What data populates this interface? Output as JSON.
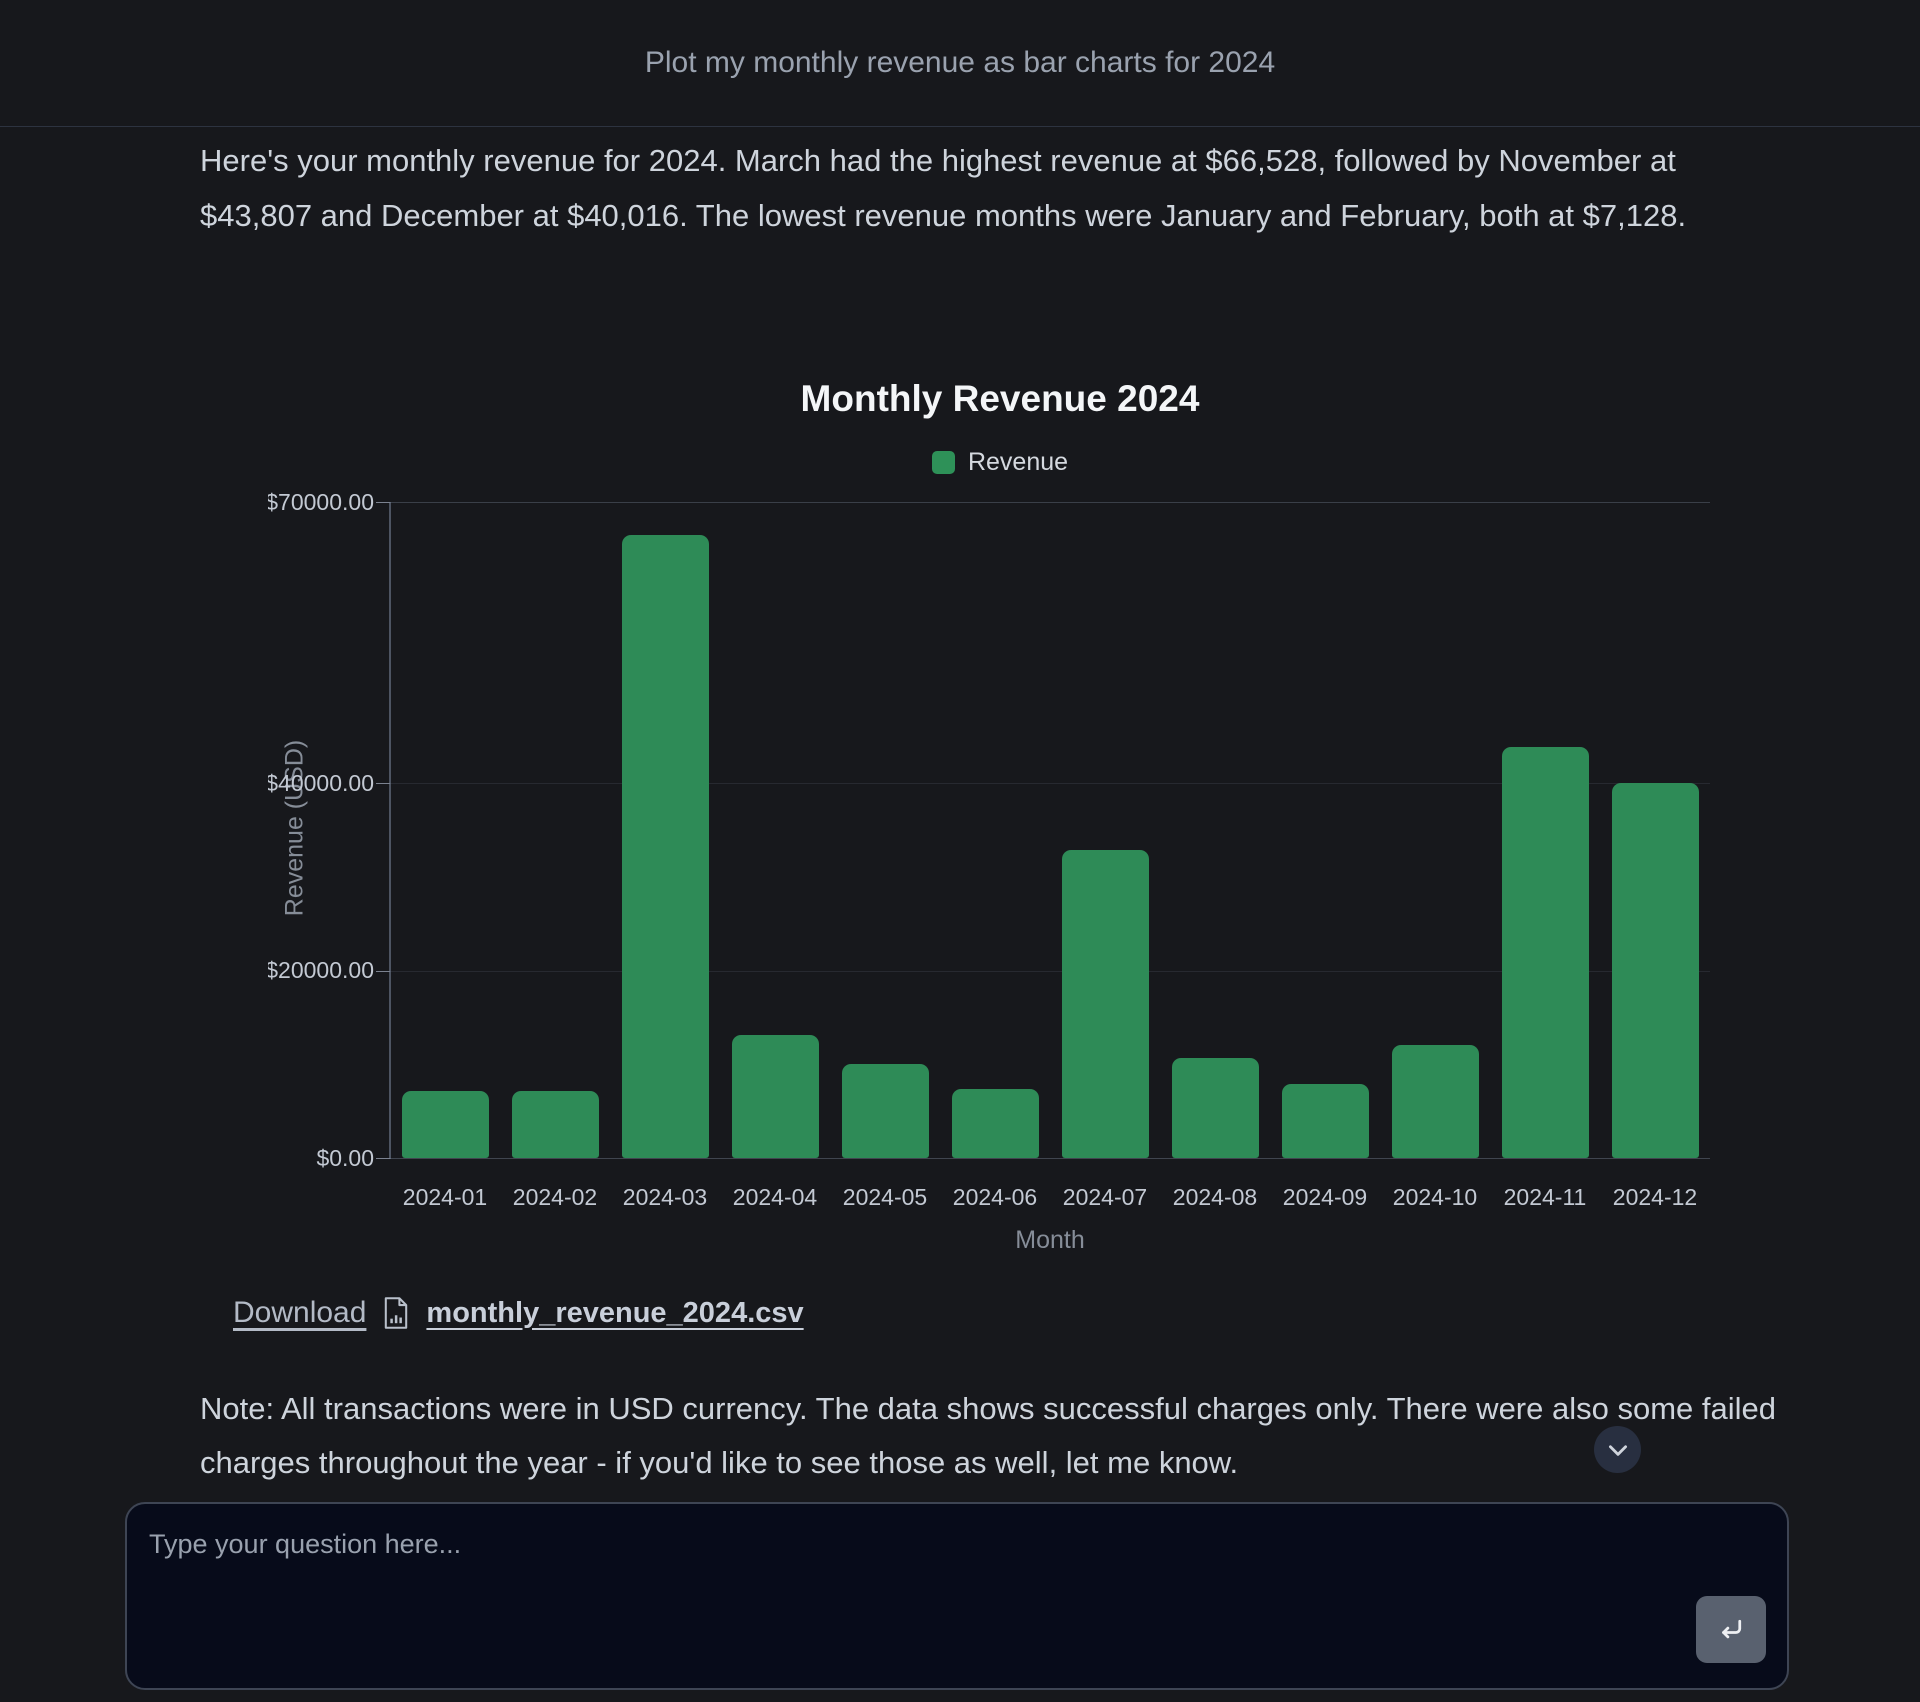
{
  "header": {
    "prompt": "Plot my monthly revenue as bar charts for 2024"
  },
  "message": {
    "text": "Here's your monthly revenue for 2024. March had the highest revenue at $66,528, followed by November at $43,807 and December at $40,016. The lowest revenue months were January and February, both at $7,128."
  },
  "chart_data": {
    "type": "bar",
    "title": "Monthly Revenue 2024",
    "xlabel": "Month",
    "ylabel": "Revenue (USD)",
    "categories": [
      "2024-01",
      "2024-02",
      "2024-03",
      "2024-04",
      "2024-05",
      "2024-06",
      "2024-07",
      "2024-08",
      "2024-09",
      "2024-10",
      "2024-11",
      "2024-12"
    ],
    "series": [
      {
        "name": "Revenue",
        "values": [
          7128,
          7128,
          66528,
          13150,
          10050,
          7400,
          32900,
          10700,
          7900,
          12100,
          43807,
          40016
        ]
      }
    ],
    "ylim": [
      0,
      70000
    ],
    "yticks": [
      {
        "value": 0,
        "label": "$0.00"
      },
      {
        "value": 20000,
        "label": "$20000.00"
      },
      {
        "value": 40000,
        "label": "$40000.00"
      },
      {
        "value": 70000,
        "label": "$70000.00"
      }
    ],
    "grid": true,
    "legend_position": "top",
    "bar_color": "#2e8b57",
    "legend_swatch_color": "#2e9158"
  },
  "download": {
    "label": "Download",
    "filename": "monthly_revenue_2024.csv"
  },
  "note": {
    "text": "Note: All transactions were in USD currency. The data shows successful charges only. There were also some failed charges throughout the year - if you'd like to see those as well, let me know."
  },
  "icons": {
    "file": "csv-file-icon",
    "scroll": "chevron-down-icon",
    "send": "return-key-icon"
  },
  "composer": {
    "placeholder": "Type your question here..."
  },
  "colors": {
    "background": "#17181c",
    "bar_green": "#2e8b57",
    "composer_background": "#070b1a"
  }
}
